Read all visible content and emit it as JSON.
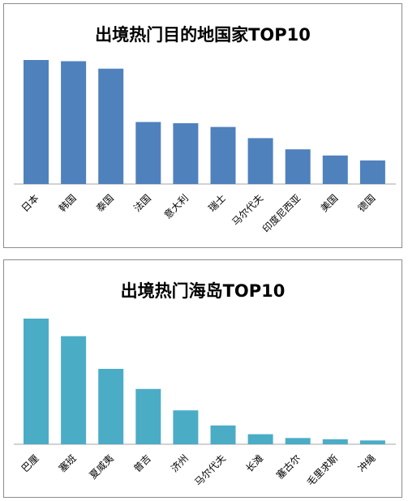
{
  "chart_data": [
    {
      "type": "bar",
      "title": "出境热门目的地国家TOP10",
      "categories": [
        "日本",
        "韩国",
        "泰国",
        "法国",
        "意大利",
        "瑞士",
        "马尔代夫",
        "印度尼西亚",
        "美国",
        "德国"
      ],
      "values": [
        100,
        99,
        93,
        50,
        49,
        46,
        37,
        28,
        23,
        19
      ],
      "xlabel": "",
      "ylabel": "",
      "ylim": [
        0,
        100
      ],
      "grid": false,
      "y_axis_visible": false,
      "bar_color": "#4f81bd"
    },
    {
      "type": "bar",
      "title": "出境热门海岛TOP10",
      "categories": [
        "巴厘",
        "塞班",
        "夏威夷",
        "普吉",
        "济州",
        "马尔代夫",
        "长滩",
        "塞古尔",
        "毛里求斯",
        "冲绳"
      ],
      "values": [
        100,
        86,
        60,
        44,
        27,
        15,
        8,
        5,
        4,
        3
      ],
      "xlabel": "",
      "ylabel": "",
      "ylim": [
        0,
        100
      ],
      "grid": false,
      "y_axis_visible": false,
      "bar_color": "#4bacc6"
    }
  ]
}
